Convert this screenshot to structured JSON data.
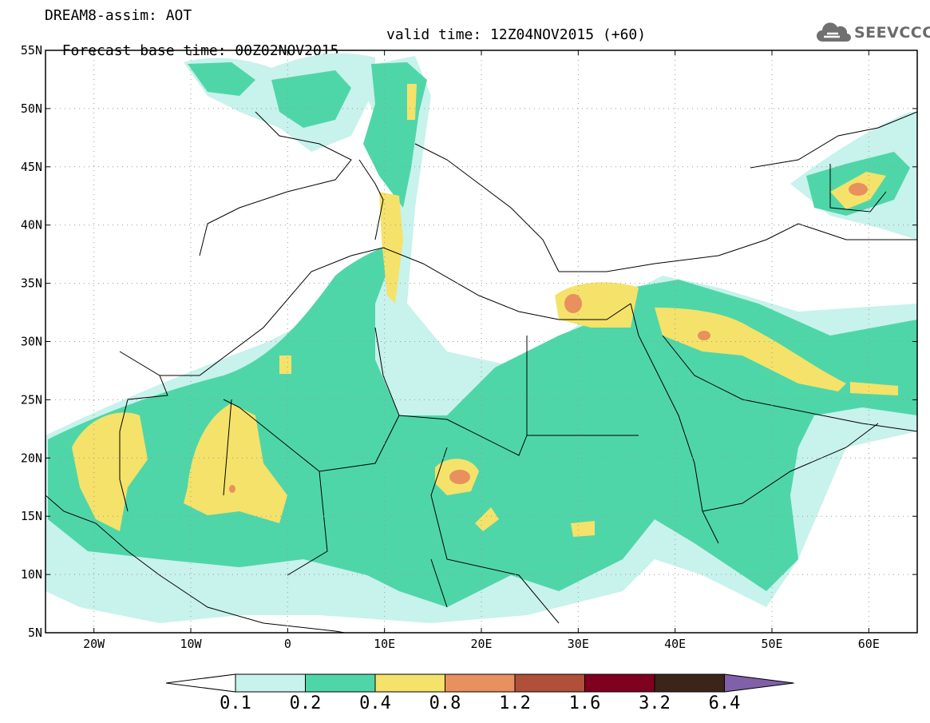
{
  "header": {
    "title": "DREAM8-assim: AOT",
    "base_time": "Forecast base time: 00Z02NOV2015",
    "valid_time": "valid time: 12Z04NOV2015 (+60)"
  },
  "logo": {
    "text": "SEEVCCC",
    "icon": "cloud-icon"
  },
  "axes": {
    "lat_labels": [
      "55N",
      "50N",
      "45N",
      "40N",
      "35N",
      "30N",
      "25N",
      "20N",
      "15N",
      "10N",
      "5N"
    ],
    "lon_labels": [
      "20W",
      "10W",
      "0",
      "10E",
      "20E",
      "30E",
      "40E",
      "50E",
      "60E"
    ],
    "lat_range": [
      5,
      55
    ],
    "lon_range": [
      -25,
      65
    ]
  },
  "colorbar": {
    "levels": [
      "0.1",
      "0.2",
      "0.4",
      "0.8",
      "1.2",
      "1.6",
      "3.2",
      "6.4"
    ],
    "colors": [
      "#c8f2ec",
      "#4fd6a8",
      "#f5e26a",
      "#e8905e",
      "#b0503a",
      "#800020",
      "#3b2418",
      "#8060a8"
    ]
  }
}
